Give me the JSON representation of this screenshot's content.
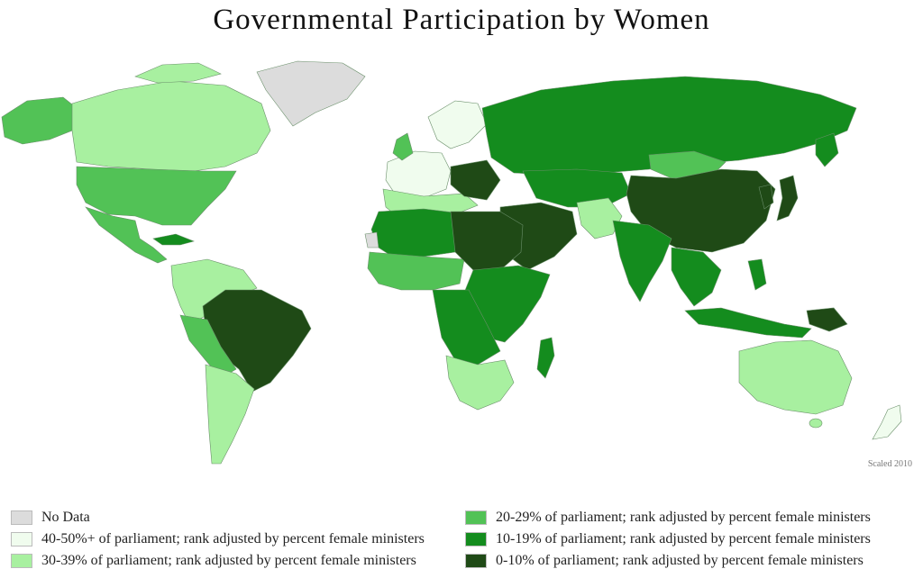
{
  "title": "Governmental Participation by Women",
  "credit": "Scaled 2010",
  "colors": {
    "no_data": "#dcdcdc",
    "c40_50": "#f0fcee",
    "c30_39": "#a8f0a0",
    "c20_29": "#52c256",
    "c10_19": "#148c1e",
    "c0_10": "#1f4a16"
  },
  "legend": [
    {
      "label": "No Data",
      "color": "#dcdcdc"
    },
    {
      "label": "40-50%+ of parliament; rank adjusted by percent female ministers",
      "color": "#f0fcee"
    },
    {
      "label": "30-39% of parliament; rank adjusted by percent female ministers",
      "color": "#a8f0a0"
    },
    {
      "label": "20-29% of parliament; rank adjusted by percent female ministers",
      "color": "#52c256"
    },
    {
      "label": "10-19% of parliament; rank adjusted by percent female ministers",
      "color": "#148c1e"
    },
    {
      "label": "0-10% of parliament; rank adjusted by percent female ministers",
      "color": "#1f4a16"
    }
  ]
}
